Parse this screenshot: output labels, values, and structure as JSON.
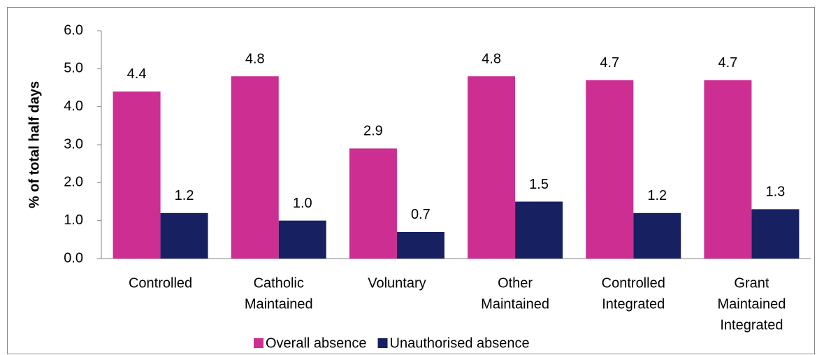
{
  "chart_data": {
    "type": "bar",
    "y_axis_label": "% of total half days",
    "categories": [
      [
        "Controlled"
      ],
      [
        "Catholic",
        "Maintained"
      ],
      [
        "Voluntary"
      ],
      [
        "Other",
        "Maintained"
      ],
      [
        "Controlled",
        "Integrated"
      ],
      [
        "Grant",
        "Maintained",
        "Integrated"
      ]
    ],
    "series": [
      {
        "name": "Overall absence",
        "color": "#cc2e92",
        "values": [
          4.4,
          4.8,
          2.9,
          4.8,
          4.7,
          4.7
        ],
        "value_labels": [
          "4.4",
          "4.8",
          "2.9",
          "4.8",
          "4.7",
          "4.7"
        ]
      },
      {
        "name": "Unauthorised absence",
        "color": "#172162",
        "values": [
          1.2,
          1.0,
          0.7,
          1.5,
          1.2,
          1.3
        ],
        "value_labels": [
          "1.2",
          "1.0",
          "0.7",
          "1.5",
          "1.2",
          "1.3"
        ]
      }
    ],
    "ylim": [
      0,
      6
    ],
    "yticks": [
      {
        "value": 0,
        "label": "0.0"
      },
      {
        "value": 1,
        "label": "1.0"
      },
      {
        "value": 2,
        "label": "2.0"
      },
      {
        "value": 3,
        "label": "3.0"
      },
      {
        "value": 4,
        "label": "4.0"
      },
      {
        "value": 5,
        "label": "5.0"
      },
      {
        "value": 6,
        "label": "6.0"
      }
    ],
    "legend": "bottom"
  }
}
